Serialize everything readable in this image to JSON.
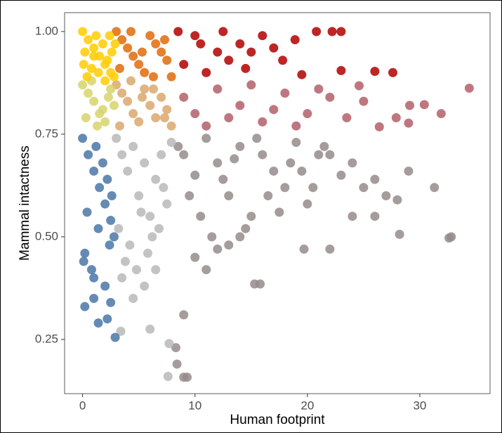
{
  "chart_data": {
    "type": "scatter",
    "x_label": "Human footprint",
    "y_label": "Mammal intactness",
    "xlim": [
      -1.6,
      36.25
    ],
    "ylim": [
      0.118,
      1.046
    ],
    "xticks": [
      0,
      10,
      20,
      30
    ],
    "yticks": [
      {
        "value": 0.25,
        "label": "0.25"
      },
      {
        "value": 0.5,
        "label": "0.50"
      },
      {
        "value": 0.75,
        "label": "0.75"
      },
      {
        "value": 1.0,
        "label": "1.00"
      }
    ],
    "series": [
      {
        "color": "#958b8b",
        "x": [
          8.5,
          9,
          10,
          11,
          12,
          13,
          14,
          15,
          16,
          17,
          18,
          19,
          20,
          21,
          9.5,
          10.5,
          11.5,
          12.5,
          13.5,
          14.5,
          15.5,
          16.5,
          17.5,
          18.5,
          19.5,
          20.5,
          21.5,
          22,
          23,
          24,
          25,
          26,
          27,
          28,
          29,
          31.3,
          32.6,
          32.8,
          28.2,
          26,
          24,
          22,
          19.7,
          15.3,
          15.8,
          9,
          9.3,
          8.4,
          8.3,
          9,
          10,
          12,
          14,
          11,
          13
        ],
        "y": [
          0.72,
          0.7,
          0.65,
          0.74,
          0.68,
          0.6,
          0.72,
          0.55,
          0.7,
          0.66,
          0.62,
          0.73,
          0.58,
          0.7,
          0.6,
          0.55,
          0.5,
          0.64,
          0.69,
          0.52,
          0.74,
          0.6,
          0.56,
          0.68,
          0.66,
          0.62,
          0.72,
          0.7,
          0.65,
          0.68,
          0.62,
          0.64,
          0.6,
          0.59,
          0.66,
          0.62,
          0.497,
          0.5,
          0.506,
          0.55,
          0.55,
          0.47,
          0.47,
          0.385,
          0.385,
          0.31,
          0.158,
          0.19,
          0.23,
          0.158,
          0.45,
          0.47,
          0.5,
          0.42,
          0.48
        ]
      },
      {
        "color": "#b9b9b9",
        "x": [
          3,
          3.5,
          4,
          4.5,
          5,
          5.5,
          6,
          6.5,
          7,
          7.5,
          7.9,
          3.2,
          4.2,
          5.2,
          6.2,
          7.2,
          3.8,
          4.8,
          5.8,
          6.8,
          7.6,
          7.7,
          6,
          3.4,
          4.5,
          5.5,
          3.5,
          6.5
        ],
        "y": [
          0.74,
          0.7,
          0.66,
          0.72,
          0.6,
          0.68,
          0.55,
          0.64,
          0.7,
          0.58,
          0.73,
          0.52,
          0.48,
          0.56,
          0.5,
          0.62,
          0.44,
          0.42,
          0.46,
          0.52,
          0.16,
          0.24,
          0.275,
          0.27,
          0.35,
          0.38,
          0.4,
          0.42
        ]
      },
      {
        "color": "#4a77a7",
        "x": [
          0,
          0.5,
          1,
          1.5,
          2,
          2.5,
          2.8,
          0.2,
          0.8,
          1.2,
          1.8,
          2.2,
          2.6,
          0.4,
          1.4,
          2.4,
          0.1,
          1,
          2,
          2.9,
          2.2,
          1.4,
          0.2,
          1,
          2.5
        ],
        "y": [
          0.74,
          0.7,
          0.66,
          0.62,
          0.58,
          0.54,
          0.5,
          0.46,
          0.42,
          0.72,
          0.68,
          0.64,
          0.6,
          0.56,
          0.52,
          0.48,
          0.44,
          0.4,
          0.38,
          0.255,
          0.3,
          0.29,
          0.33,
          0.35,
          0.34
        ]
      },
      {
        "color": "#b45f68",
        "x": [
          34.4,
          31.9,
          30.4,
          29.1,
          29,
          26.4,
          24.6,
          22,
          20,
          18,
          16,
          14,
          12,
          10,
          9,
          11,
          13,
          15,
          17,
          19,
          21,
          23.5,
          25,
          27.9
        ],
        "y": [
          0.862,
          0.8,
          0.822,
          0.82,
          0.777,
          0.768,
          0.868,
          0.84,
          0.8,
          0.85,
          0.78,
          0.82,
          0.86,
          0.8,
          0.84,
          0.77,
          0.79,
          0.87,
          0.81,
          0.77,
          0.86,
          0.79,
          0.83,
          0.79
        ]
      },
      {
        "color": "#dba86c",
        "x": [
          3,
          3.5,
          4,
          4.5,
          5,
          5.5,
          6,
          6.5,
          7,
          7.5,
          7.9,
          3.3,
          4.3,
          5.3,
          6.3,
          7.3
        ],
        "y": [
          0.87,
          0.85,
          0.83,
          0.8,
          0.78,
          0.86,
          0.82,
          0.79,
          0.84,
          0.81,
          0.77,
          0.77,
          0.88,
          0.84,
          0.86,
          0.79
        ]
      },
      {
        "color": "#d8d36c",
        "x": [
          0,
          0.5,
          1,
          1.5,
          2,
          2.5,
          2.8,
          0.3,
          1.3,
          2.3,
          0.8,
          1.8
        ],
        "y": [
          0.87,
          0.85,
          0.83,
          0.8,
          0.78,
          0.86,
          0.82,
          0.79,
          0.77,
          0.84,
          0.88,
          0.81
        ]
      },
      {
        "color": "#b30000",
        "x": [
          23,
          22.2,
          20.8,
          18.9,
          19.5,
          26,
          27.6,
          23,
          17.8,
          16,
          14,
          12,
          10,
          9,
          11,
          13,
          15,
          17,
          8.5,
          10.5,
          12.5,
          14.5
        ],
        "y": [
          1.0,
          1.0,
          1.0,
          0.98,
          0.895,
          0.903,
          0.9,
          0.905,
          0.93,
          0.99,
          0.97,
          0.95,
          0.99,
          0.92,
          0.9,
          0.93,
          0.95,
          0.96,
          1.0,
          0.97,
          1.0,
          0.91
        ]
      },
      {
        "color": "#e06b0a",
        "x": [
          3,
          3.5,
          4,
          4.5,
          5,
          5.5,
          6,
          6.5,
          7,
          7.5,
          7.9,
          3.3,
          4.3,
          5.3,
          6.3,
          7.3
        ],
        "y": [
          1.0,
          0.98,
          0.96,
          0.94,
          0.92,
          0.9,
          0.99,
          0.97,
          0.95,
          0.93,
          0.89,
          0.91,
          1.0,
          0.95,
          0.89,
          0.98
        ]
      },
      {
        "color": "#ffcc00",
        "x": [
          0,
          0.5,
          1,
          1.5,
          2,
          2.5,
          2.8,
          0.2,
          0.8,
          1.2,
          1.8,
          2.2,
          2.6,
          0.4,
          1.4,
          2.4,
          0.1,
          1,
          2,
          2.9
        ],
        "y": [
          1.0,
          0.98,
          0.96,
          0.94,
          0.92,
          0.9,
          0.89,
          0.95,
          0.91,
          0.99,
          0.97,
          0.93,
          0.95,
          0.89,
          0.9,
          0.99,
          0.92,
          0.94,
          0.88,
          0.97
        ]
      }
    ]
  }
}
